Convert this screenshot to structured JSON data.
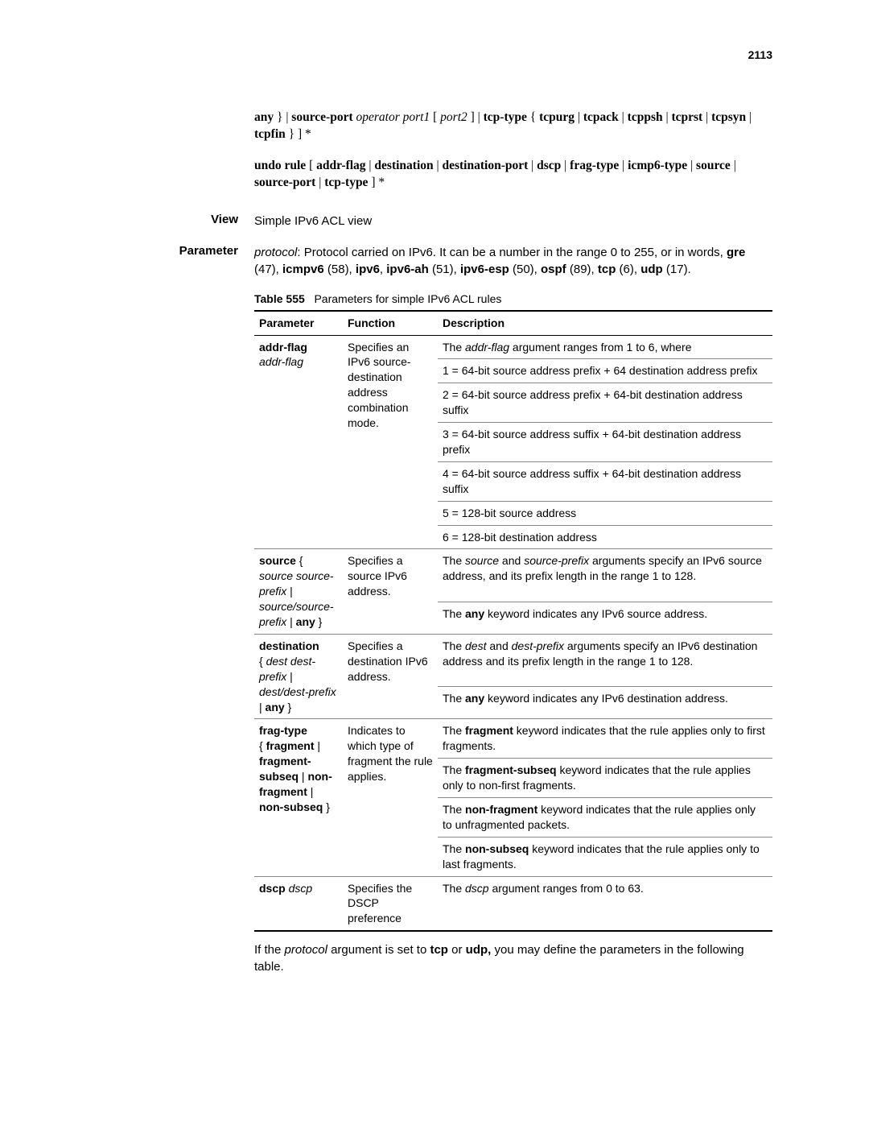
{
  "page_number": "2113",
  "syntax": {
    "line1_html": "<b>any</b> } | <b>source-port</b> <i>operator port1</i> [ <i>port2</i> ] | <b>tcp-type</b> { <b>tcpurg</b> | <b>tcpack</b> | <b>tcppsh</b> | <b>tcprst</b> | <b>tcpsyn</b> | <b>tcpfin</b> } ] *",
    "line2_html": "<b>undo rule</b> [ <b>addr-flag</b> | <b>destination</b> | <b>destination-port</b> | <b>dscp</b> | <b>frag-type</b> | <b>icmp6-type</b> | <b>source</b> | <b>source-port</b> | <b>tcp-type</b> ] *"
  },
  "view": {
    "label": "View",
    "text": "Simple IPv6 ACL view"
  },
  "parameter": {
    "label": "Parameter",
    "intro_html": "<i>protocol</i>: Protocol carried on IPv6. It can be a number in the range 0 to 255, or in words, <b>gre</b> (47), <b>icmpv6</b> (58), <b>ipv6</b>, <b>ipv6-ah</b> (51), <b>ipv6-esp</b> (50), <b>ospf</b> (89), <b>tcp</b> (6), <b>udp</b> (17)."
  },
  "table": {
    "caption_label": "Table 555",
    "caption_text": "Parameters for simple IPv6 ACL rules",
    "headers": {
      "param": "Parameter",
      "func": "Function",
      "desc": "Description"
    },
    "rows": [
      {
        "param_html": "<b>addr-flag</b><br><i>addr-flag</i>",
        "func_html": "Specifies an IPv6 source-destination address combination mode.",
        "desc_items": [
          "The <i>addr-flag</i> argument ranges from 1 to 6, where",
          "1 = 64-bit source address prefix + 64 destination address prefix",
          "2 = 64-bit source address prefix + 64-bit destination address suffix",
          "3 = 64-bit source address suffix + 64-bit destination address prefix",
          "4 = 64-bit source address suffix + 64-bit destination address suffix",
          "5 = 128-bit source address",
          "6 = 128-bit destination address"
        ]
      },
      {
        "param_html": "<b>source</b> { <i>source source-prefix</i> | <i>source/source-prefix</i> | <b>any</b> }",
        "func_html": "Specifies a source IPv6 address.",
        "desc_items": [
          "The <i>source</i> and <i>source-prefix</i> arguments specify an IPv6 source address, and its prefix length in the range 1 to 128.",
          "The <b>any</b> keyword indicates any IPv6 source address."
        ]
      },
      {
        "param_html": "<b>destination</b><br>{ <i>dest dest-prefix</i> | <i>dest/dest-prefix</i> | <b>any</b> }",
        "func_html": "Specifies a destination IPv6 address.",
        "desc_items": [
          "The <i>dest</i> and <i>dest-prefix</i> arguments specify an IPv6 destination address and its prefix length in the range 1 to 128.",
          "The <b>any</b> keyword indicates any IPv6 destination address."
        ]
      },
      {
        "param_html": "<b>frag-type</b><br>{ <b>fragment</b> | <b>fragment-subseq</b> | <b>non-fragment</b> | <b>non-subseq</b> }",
        "func_html": "Indicates to which type of fragment the rule applies.",
        "desc_items": [
          "The <b>fragment</b> keyword indicates that the rule applies only to first fragments.",
          "The <b>fragment-subseq</b> keyword indicates that the rule applies only to non-first fragments.",
          "The <b>non-fragment</b> keyword indicates that the rule applies only to unfragmented packets.",
          "The <b>non-subseq</b> keyword indicates that the rule applies only to last fragments."
        ]
      },
      {
        "param_html": "<b>dscp</b> <i>dscp</i>",
        "func_html": "Specifies the DSCP preference",
        "desc_items": [
          "The <i>dscp</i> argument ranges from 0 to 63."
        ]
      }
    ]
  },
  "after_table_html": "If the <i>protocol</i> argument is set to <b>tcp</b> or <b>udp,</b> you may define the parameters in the following table."
}
